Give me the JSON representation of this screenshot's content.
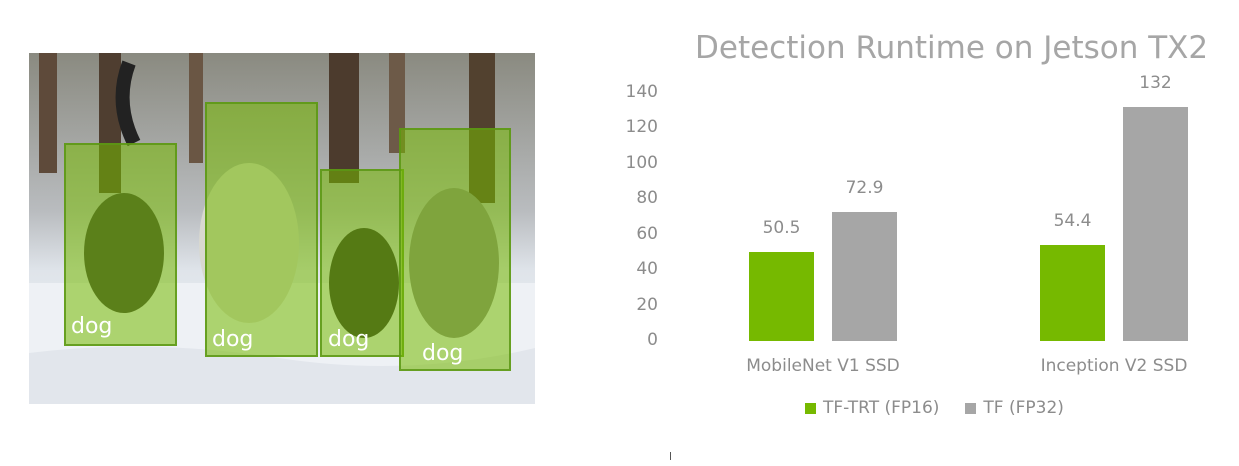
{
  "detections": [
    {
      "label": "dog"
    },
    {
      "label": "dog"
    },
    {
      "label": "dog"
    },
    {
      "label": "dog"
    }
  ],
  "colors": {
    "tf_trt": "#76b900",
    "tf": "#a6a6a6",
    "text": "#8c8c8c",
    "title": "#a6a6a6"
  },
  "chart_data": {
    "type": "bar",
    "title": "Detection Runtime on Jetson TX2",
    "categories": [
      "MobileNet V1 SSD",
      "Inception V2 SSD"
    ],
    "series": [
      {
        "name": "TF-TRT (FP16)",
        "values": [
          50.5,
          54.4
        ],
        "labels": [
          "50.5",
          "54.4"
        ]
      },
      {
        "name": "TF (FP32)",
        "values": [
          72.9,
          132
        ],
        "labels": [
          "72.9",
          "132"
        ]
      }
    ],
    "yticks": [
      "0",
      "20",
      "40",
      "60",
      "80",
      "100",
      "120",
      "140"
    ],
    "ylim": [
      0,
      140
    ],
    "grid": false,
    "legend_position": "bottom"
  }
}
